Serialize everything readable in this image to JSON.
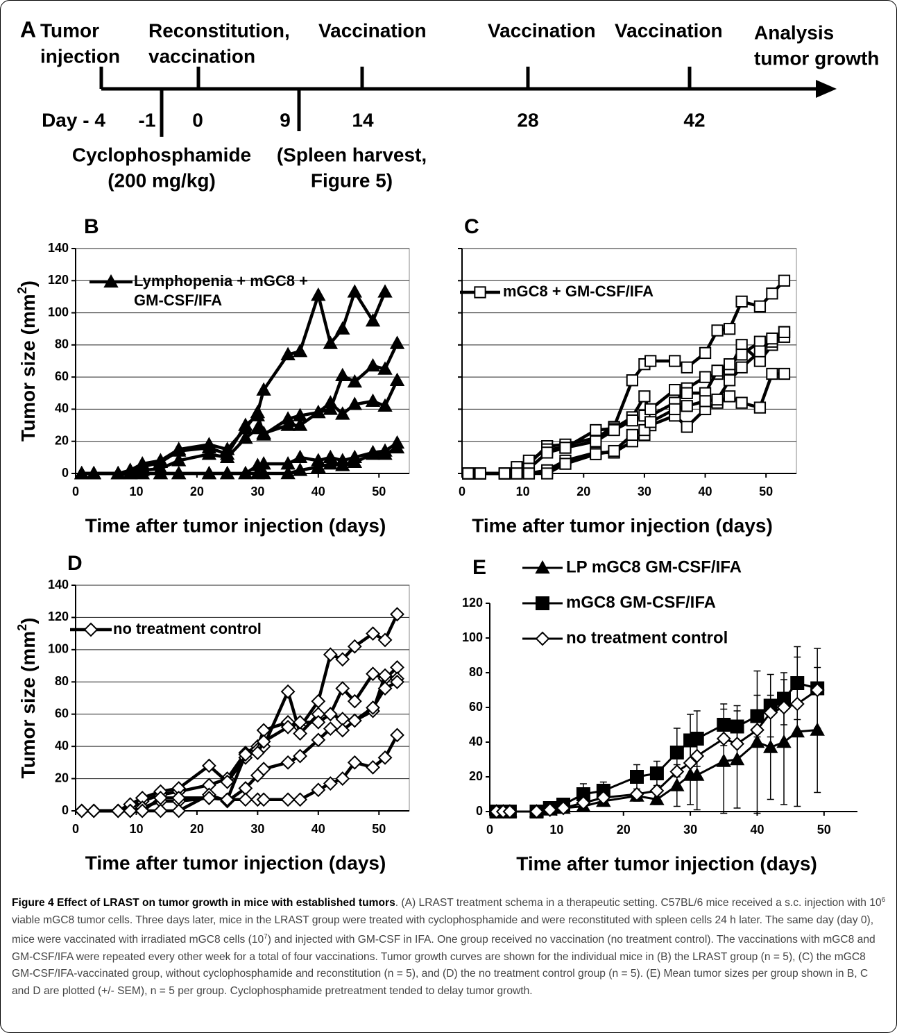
{
  "timeline": {
    "panel": "A",
    "events_above": [
      [
        "Tumor",
        "injection"
      ],
      [
        "Reconstitution,",
        "vaccination"
      ],
      [
        "Vaccination"
      ],
      [
        "Vaccination"
      ],
      [
        "Vaccination"
      ],
      [
        "Analysis",
        "tumor growth"
      ]
    ],
    "day_labels": [
      "Day - 4",
      "-1",
      "0",
      "9",
      "14",
      "28",
      "42"
    ],
    "events_below": [
      [
        "Cyclophosphamide",
        "(200 mg/kg)"
      ],
      [
        "(Spleen harvest,",
        "Figure 5)"
      ]
    ]
  },
  "chart_data": [
    {
      "type": "line",
      "title": "B",
      "xlabel": "Time after tumor injection (days)",
      "ylabel": {
        "text": "Tumor size (mm",
        "sup": "2",
        "end": ")"
      },
      "legend_label": [
        "Lymphopenia + mGC8 +",
        "GM-CSF/IFA"
      ],
      "x": [
        1,
        3,
        7,
        9,
        11,
        14,
        17,
        22,
        25,
        28,
        30,
        31,
        35,
        37,
        40,
        42,
        44,
        46,
        49,
        51,
        53
      ],
      "series": [
        {
          "color": "#000000",
          "marker": "triangle",
          "values": [
            0,
            0,
            0,
            2,
            6,
            8,
            15,
            18,
            15,
            28,
            38,
            52,
            74,
            76,
            111,
            81,
            90,
            113,
            95,
            113,
            null
          ]
        },
        {
          "color": "#000000",
          "marker": "triangle",
          "values": [
            0,
            0,
            0,
            0,
            4,
            7,
            14,
            16,
            12,
            30,
            36,
            25,
            30,
            30,
            38,
            40,
            61,
            57,
            67,
            65,
            81
          ]
        },
        {
          "color": "#000000",
          "marker": "triangle",
          "values": [
            0,
            0,
            0,
            0,
            2,
            3,
            8,
            12,
            10,
            22,
            28,
            24,
            34,
            36,
            38,
            44,
            37,
            43,
            45,
            42,
            58
          ]
        },
        {
          "color": "#000000",
          "marker": "triangle",
          "values": [
            0,
            0,
            0,
            0,
            0,
            0,
            0,
            0,
            0,
            0,
            5,
            6,
            6,
            10,
            8,
            10,
            8,
            10,
            13,
            14,
            19
          ]
        },
        {
          "color": "#000000",
          "marker": "triangle",
          "values": [
            0,
            0,
            0,
            0,
            0,
            0,
            0,
            0,
            0,
            0,
            0,
            0,
            0,
            2,
            4,
            6,
            5,
            7,
            12,
            12,
            16
          ]
        }
      ],
      "xlim": [
        0,
        55
      ],
      "xticks": [
        0,
        10,
        20,
        30,
        40,
        50
      ],
      "ylim": [
        0,
        140
      ],
      "yticks": [
        0,
        20,
        40,
        60,
        80,
        100,
        120,
        140
      ],
      "grid": true,
      "frame": true,
      "show_ytick_labels": true
    },
    {
      "type": "line",
      "title": "C",
      "xlabel": "Time after tumor injection (days)",
      "legend_label": [
        "mGC8 + GM-CSF/IFA"
      ],
      "x": [
        1,
        3,
        7,
        9,
        11,
        14,
        17,
        22,
        25,
        28,
        30,
        31,
        35,
        37,
        40,
        42,
        44,
        46,
        49,
        51,
        53
      ],
      "series": [
        {
          "color": "#000000",
          "marker": "square-open",
          "values": [
            0,
            0,
            0,
            2,
            6,
            17,
            18,
            22,
            29,
            58,
            68,
            70,
            70,
            66,
            75,
            89,
            90,
            107,
            104,
            112,
            120
          ]
        },
        {
          "color": "#000000",
          "marker": "square-open",
          "values": [
            0,
            0,
            0,
            4,
            8,
            15,
            16,
            27,
            28,
            35,
            48,
            36,
            44,
            53,
            60,
            62,
            65,
            80,
            70,
            80,
            88
          ]
        },
        {
          "color": "#000000",
          "marker": "square-open",
          "values": [
            0,
            0,
            0,
            0,
            3,
            13,
            16,
            20,
            27,
            33,
            36,
            40,
            52,
            50,
            50,
            64,
            68,
            74,
            82,
            82,
            85
          ]
        },
        {
          "color": "#000000",
          "marker": "square-open",
          "values": [
            0,
            0,
            0,
            0,
            0,
            2,
            8,
            13,
            13,
            20,
            24,
            30,
            36,
            29,
            40,
            44,
            48,
            44,
            41,
            62,
            62
          ]
        },
        {
          "color": "#000000",
          "marker": "square-open",
          "values": [
            0,
            0,
            0,
            0,
            0,
            0,
            6,
            12,
            14,
            24,
            27,
            32,
            40,
            42,
            45,
            46,
            58,
            66,
            76,
            84,
            88
          ]
        }
      ],
      "xlim": [
        0,
        55
      ],
      "xticks": [
        0,
        10,
        20,
        30,
        40,
        50
      ],
      "ylim": [
        0,
        140
      ],
      "yticks": [
        0,
        20,
        40,
        60,
        80,
        100,
        120,
        140
      ],
      "grid": true,
      "frame": true,
      "show_ytick_labels": false
    },
    {
      "type": "line",
      "title": "D",
      "xlabel": "Time after tumor injection (days)",
      "ylabel": {
        "text": "Tumor size (mm",
        "sup": "2",
        "end": ")"
      },
      "legend_label": [
        "no treatment control"
      ],
      "x": [
        1,
        3,
        7,
        9,
        11,
        14,
        17,
        22,
        25,
        28,
        30,
        31,
        35,
        37,
        40,
        42,
        44,
        46,
        49,
        51,
        53
      ],
      "series": [
        {
          "color": "#000000",
          "marker": "diamond-open",
          "values": [
            0,
            0,
            0,
            2,
            6,
            10,
            12,
            16,
            20,
            36,
            40,
            50,
            55,
            52,
            68,
            97,
            94,
            102,
            110,
            106,
            122
          ]
        },
        {
          "color": "#000000",
          "marker": "diamond-open",
          "values": [
            0,
            0,
            0,
            4,
            8,
            12,
            14,
            28,
            18,
            33,
            38,
            40,
            74,
            48,
            60,
            60,
            76,
            68,
            85,
            82,
            89
          ]
        },
        {
          "color": "#000000",
          "marker": "diamond-open",
          "values": [
            0,
            0,
            0,
            0,
            2,
            6,
            6,
            8,
            7,
            35,
            36,
            43,
            52,
            55,
            55,
            60,
            57,
            56,
            62,
            84,
            82
          ]
        },
        {
          "color": "#000000",
          "marker": "diamond-open",
          "values": [
            0,
            0,
            0,
            0,
            0,
            0,
            0,
            10,
            6,
            14,
            22,
            26,
            30,
            34,
            44,
            51,
            50,
            56,
            64,
            76,
            80
          ]
        },
        {
          "color": "#000000",
          "marker": "diamond-open",
          "values": [
            0,
            0,
            0,
            0,
            0,
            8,
            8,
            8,
            7,
            7,
            7,
            7,
            7,
            7,
            13,
            17,
            20,
            30,
            27,
            33,
            47
          ]
        }
      ],
      "xlim": [
        0,
        55
      ],
      "xticks": [
        0,
        10,
        20,
        30,
        40,
        50
      ],
      "ylim": [
        0,
        140
      ],
      "yticks": [
        0,
        20,
        40,
        60,
        80,
        100,
        120,
        140
      ],
      "grid": true,
      "frame": true,
      "show_ytick_labels": true
    },
    {
      "type": "errorline",
      "title": "E",
      "xlabel": "Time after tumor injection (days)",
      "x": [
        1,
        2,
        3,
        7,
        9,
        11,
        14,
        17,
        22,
        25,
        28,
        30,
        31,
        35,
        37,
        40,
        42,
        44,
        46,
        49
      ],
      "series": [
        {
          "name": "LP mGC8 GM-CSF/IFA",
          "color": "#000000",
          "marker": "triangle",
          "values": [
            0,
            0,
            0,
            0,
            1,
            2,
            3,
            6,
            9,
            7,
            15,
            21,
            21,
            29,
            30,
            40,
            37,
            40,
            46,
            47
          ],
          "errors": [
            0,
            0,
            0,
            0,
            0,
            0,
            1,
            2,
            3,
            3,
            12,
            17,
            20,
            30,
            28,
            41,
            30,
            36,
            43,
            36
          ]
        },
        {
          "name": "mGC8 GM-CSF/IFA",
          "color": "#000000",
          "marker": "square",
          "values": [
            0,
            0,
            0,
            0,
            2,
            4,
            10,
            12,
            20,
            22,
            34,
            41,
            42,
            50,
            49,
            55,
            61,
            65,
            74,
            71
          ],
          "errors": [
            0,
            0,
            0,
            0,
            1,
            2,
            6,
            5,
            7,
            7,
            14,
            15,
            16,
            12,
            12,
            12,
            18,
            15,
            21,
            23
          ]
        },
        {
          "name": "no treatment control",
          "color": "#000000",
          "marker": "diamond-open",
          "values": [
            0,
            0,
            0,
            0,
            1,
            2,
            5,
            8,
            10,
            12,
            23,
            28,
            32,
            42,
            39,
            47,
            57,
            60,
            62,
            70
          ]
        }
      ],
      "xlim": [
        0,
        55
      ],
      "xticks": [
        0,
        10,
        20,
        30,
        40,
        50
      ],
      "ylim": [
        0,
        120
      ],
      "yticks": [
        0,
        20,
        40,
        60,
        80,
        100,
        120
      ],
      "grid": false,
      "frame": false,
      "show_ytick_labels": true
    }
  ],
  "caption": {
    "runs": [
      {
        "text": "Figure 4 Effect of LRAST on tumor growth in mice with established tumors",
        "bold": true
      },
      {
        "text": ". (A) LRAST treatment schema in a therapeutic setting. C57BL/6 mice received a s.c. injection with 10"
      },
      {
        "text": "6",
        "sup": true
      },
      {
        "text": " viable mGC8 tumor cells. Three days later, mice in the LRAST group were treated with cyclophosphamide and were reconstituted with spleen cells 24 h later. The same day (day 0), mice were vaccinated with irradiated mGC8 cells (10"
      },
      {
        "text": "7",
        "sup": true
      },
      {
        "text": ") and injected with GM-CSF in IFA. One group received no vaccination (no treatment control). The vaccinations with mGC8 and GM-CSF/IFA were repeated every other week for a total of four vaccinations. Tumor growth curves are shown for the individual mice in (B) the LRAST group (n = 5), (C) the mGC8 GM-CSF/IFA-vaccinated group, without cyclophosphamide and reconstitution (n = 5), and (D) the no treatment control group (n = 5). (E) Mean tumor sizes per group shown in B, C and D are plotted (+/- SEM), n = 5 per group. Cyclophosphamide pretreatment tended to delay tumor growth."
      }
    ]
  }
}
